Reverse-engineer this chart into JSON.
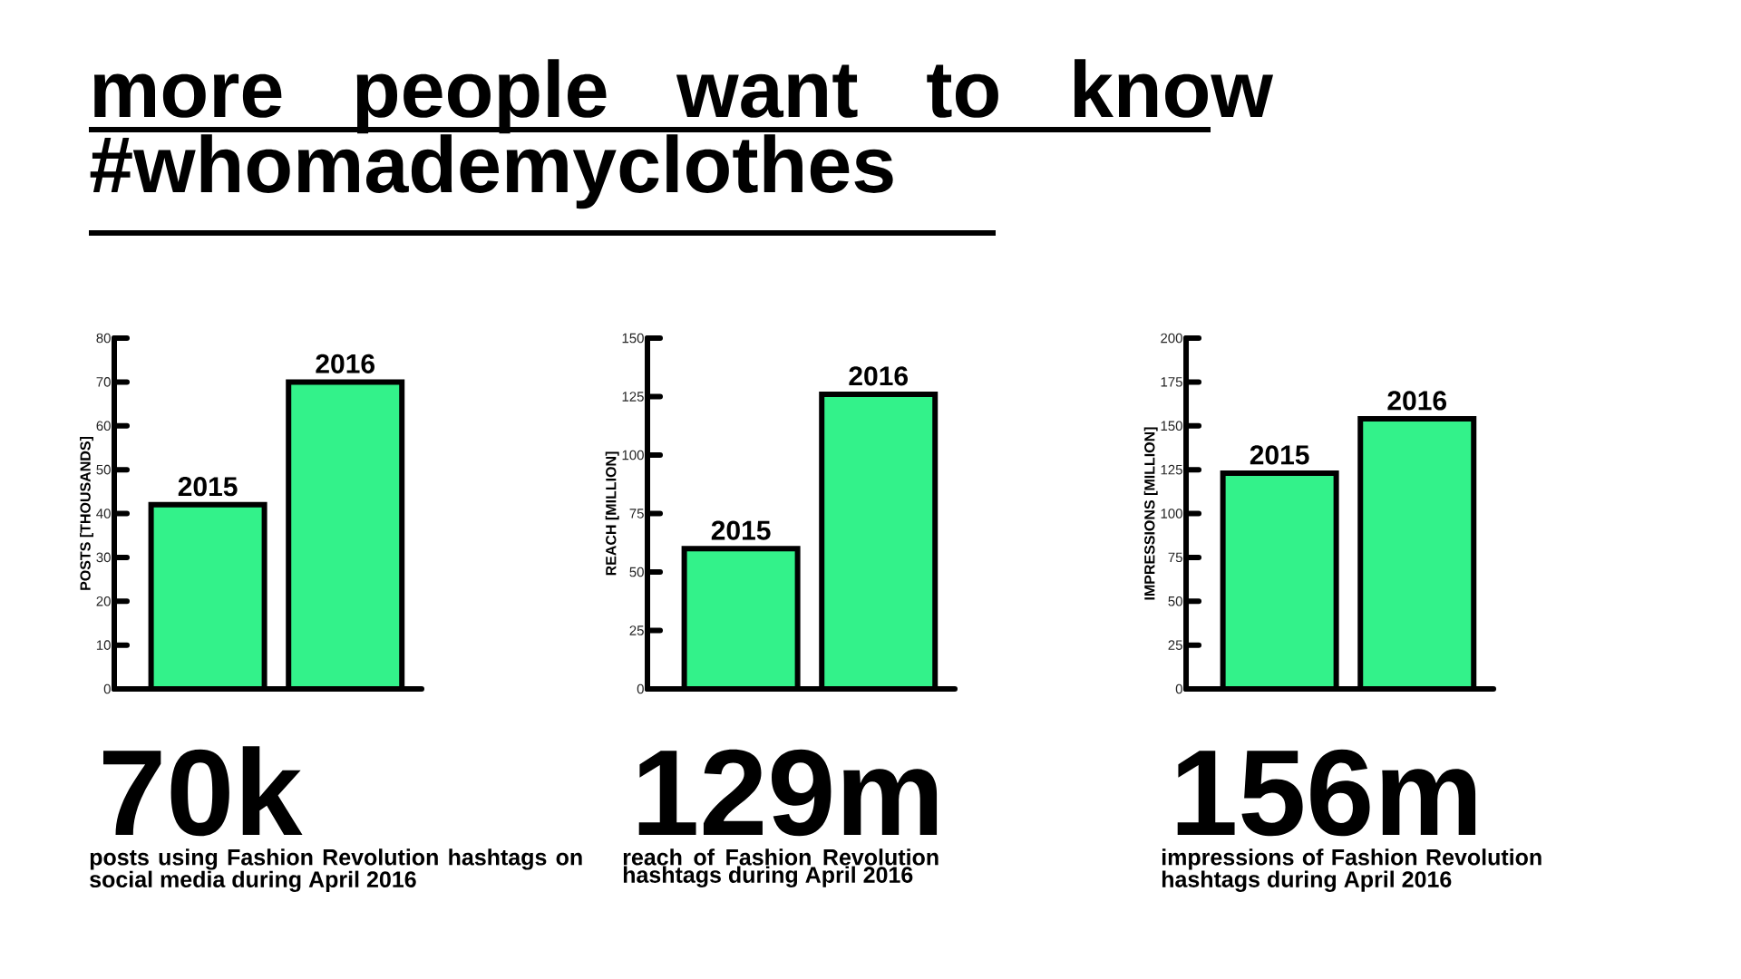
{
  "chart_data": [
    {
      "type": "bar",
      "title": "more people want to know #whomademyclothes",
      "categories": [
        "2015",
        "2016"
      ],
      "values": [
        42,
        70
      ],
      "colors": [
        "#33f28a",
        "#33f28a"
      ],
      "ylabel": "POSTS [THOUSANDS]",
      "ylim": [
        0,
        80
      ],
      "yticks": [
        0,
        10,
        20,
        30,
        40,
        50,
        60,
        70,
        80
      ],
      "annotations": [
        "70k",
        "posts using Fashion Revolution hashtags on social media during April 2016"
      ]
    },
    {
      "type": "bar",
      "categories": [
        "2015",
        "2016"
      ],
      "values": [
        60,
        126
      ],
      "colors": [
        "#33f28a",
        "#33f28a"
      ],
      "ylabel": "REACH [MILLION]",
      "ylim": [
        0,
        150
      ],
      "yticks": [
        0,
        25,
        50,
        75,
        100,
        125,
        150
      ],
      "annotations": [
        "129m",
        "reach of Fashion Revolution hashtags during April 2016"
      ]
    },
    {
      "type": "bar",
      "categories": [
        "2015",
        "2016"
      ],
      "values": [
        123,
        154
      ],
      "colors": [
        "#33f28a",
        "#33f28a"
      ],
      "ylabel": "IMPRESSIONS [MILLION]",
      "ylim": [
        0,
        200
      ],
      "yticks": [
        0,
        25,
        50,
        75,
        100,
        125,
        150,
        175,
        200
      ],
      "annotations": [
        "156m",
        "impressions of Fashion Revolution hashtags during April 2016"
      ]
    }
  ]
}
